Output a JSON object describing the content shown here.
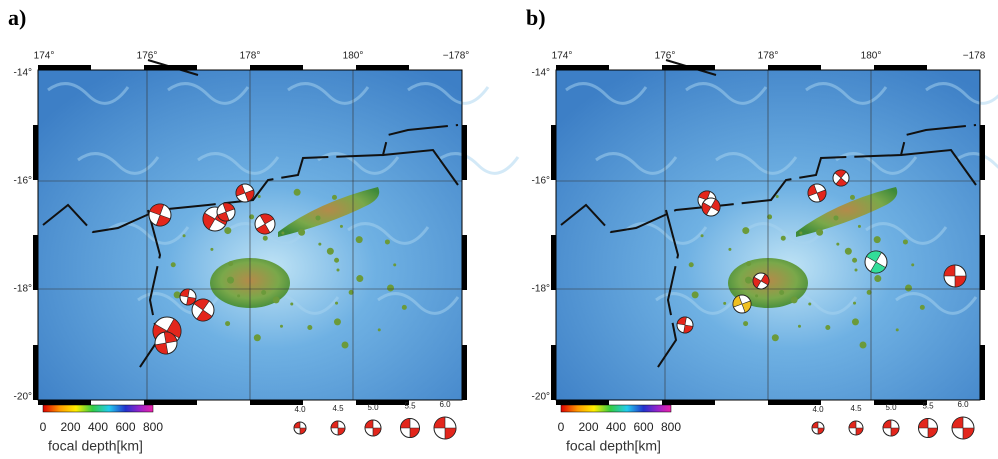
{
  "panels": [
    {
      "label": "a)",
      "lon_ticks": [
        "174°",
        "176°",
        "178°",
        "180°",
        "−178°"
      ],
      "lat_ticks": [
        "-14°",
        "-16°",
        "-18°",
        "-20°"
      ],
      "colorbar_ticks": [
        "0",
        "200",
        "400",
        "600",
        "800"
      ],
      "colorbar_title": "focal depth[km]",
      "magnitudes": [
        "4.0",
        "4.5",
        "5.0",
        "5.5",
        "6.0"
      ]
    },
    {
      "label": "b)",
      "lon_ticks": [
        "174°",
        "176°",
        "178°",
        "180°",
        "−178"
      ],
      "lat_ticks": [
        "-14°",
        "-16°",
        "-18°",
        "-20°"
      ],
      "colorbar_ticks": [
        "0",
        "200",
        "400",
        "600",
        "800"
      ],
      "colorbar_title": "focal depth[km]",
      "magnitudes": [
        "4.0",
        "4.5",
        "5.0",
        "5.5",
        "6.0"
      ]
    }
  ]
}
